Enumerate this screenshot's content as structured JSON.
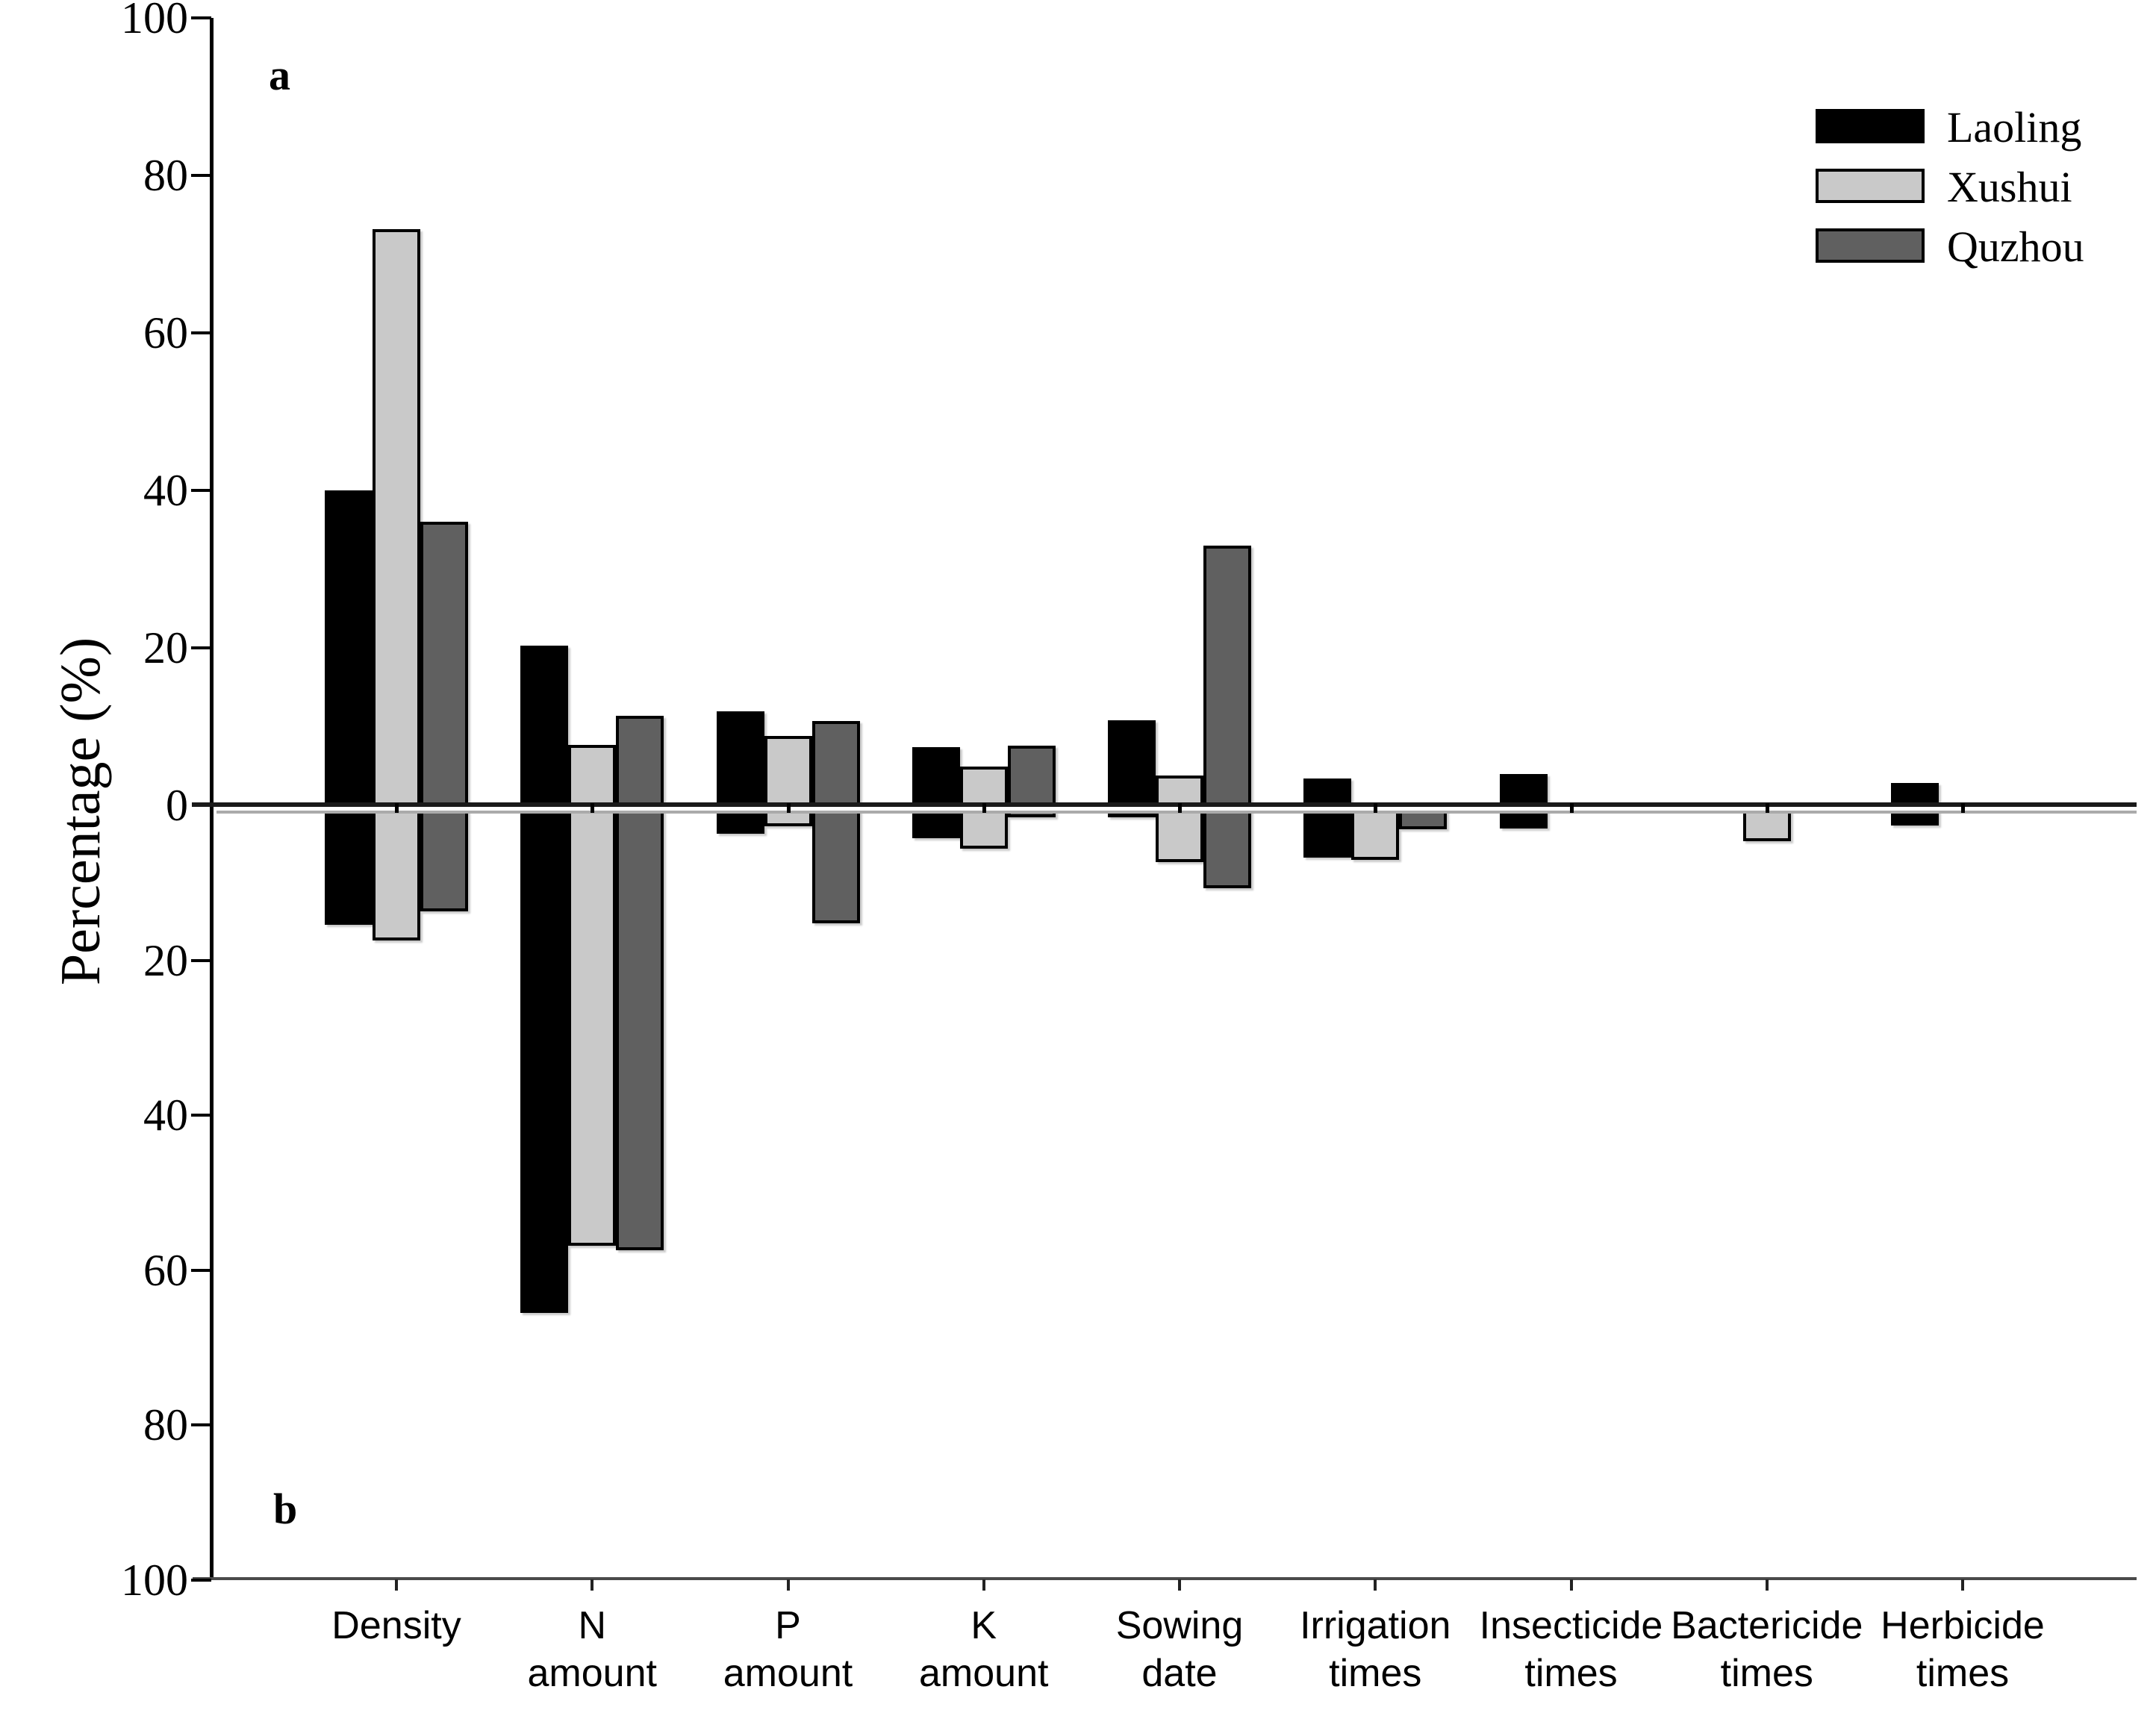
{
  "figure": {
    "panel_labels": {
      "top": "a",
      "bottom": "b"
    },
    "y_axis": {
      "label": "Percentage  (%)",
      "tick_values_top": [
        100,
        80,
        60,
        40,
        20,
        0
      ],
      "tick_values_bottom": [
        20,
        40,
        60,
        80,
        100
      ]
    },
    "legend": {
      "items": [
        {
          "label": "Laoling",
          "color": "#000000"
        },
        {
          "label": "Xushui",
          "color": "#c9c9c9"
        },
        {
          "label": "Quzhou",
          "color": "#606060"
        }
      ]
    }
  },
  "chart_data": {
    "type": "bar",
    "title": "",
    "xlabel": "",
    "ylabel": "Percentage (%)",
    "ylim": [
      -100,
      100
    ],
    "grid": false,
    "legend_position": "top-right",
    "panels": {
      "a": "positive percentages (above zero line)",
      "b": "negative percentages (below zero line)"
    },
    "categories": [
      "Density",
      "N amount",
      "P amount",
      "K amount",
      "Sowing date",
      "Irrigation times",
      "Insecticide times",
      "Bactericide times",
      "Herbicide times"
    ],
    "category_label_lines": [
      [
        "Density"
      ],
      [
        "N",
        "amount"
      ],
      [
        "P",
        "amount"
      ],
      [
        "K",
        "amount"
      ],
      [
        "Sowing",
        "date"
      ],
      [
        "Irrigation",
        "times"
      ],
      [
        "Insecticide",
        "times"
      ],
      [
        "Bactericide",
        "times"
      ],
      [
        "Herbicide",
        "times"
      ]
    ],
    "series": [
      {
        "name": "Laoling",
        "color": "#000000",
        "positive": [
          40.0,
          20.3,
          11.9,
          7.4,
          10.8,
          3.4,
          4.0,
          0,
          2.8
        ],
        "negative": [
          -15.4,
          -65.5,
          -3.7,
          -4.2,
          -1.5,
          -6.7,
          -3.0,
          0,
          -2.6
        ]
      },
      {
        "name": "Xushui",
        "color": "#c9c9c9",
        "positive": [
          73.2,
          7.7,
          8.8,
          4.9,
          3.8,
          0,
          0,
          0,
          0
        ],
        "negative": [
          -17.4,
          -56.8,
          -2.7,
          -5.6,
          -7.3,
          -7.0,
          0,
          -4.6,
          0
        ]
      },
      {
        "name": "Quzhou",
        "color": "#606060",
        "positive": [
          36.0,
          11.4,
          10.7,
          7.6,
          33.0,
          0,
          0,
          0,
          0
        ],
        "negative": [
          -13.7,
          -57.4,
          -15.2,
          -1.5,
          -10.7,
          -3.1,
          0,
          0,
          0
        ]
      }
    ]
  }
}
